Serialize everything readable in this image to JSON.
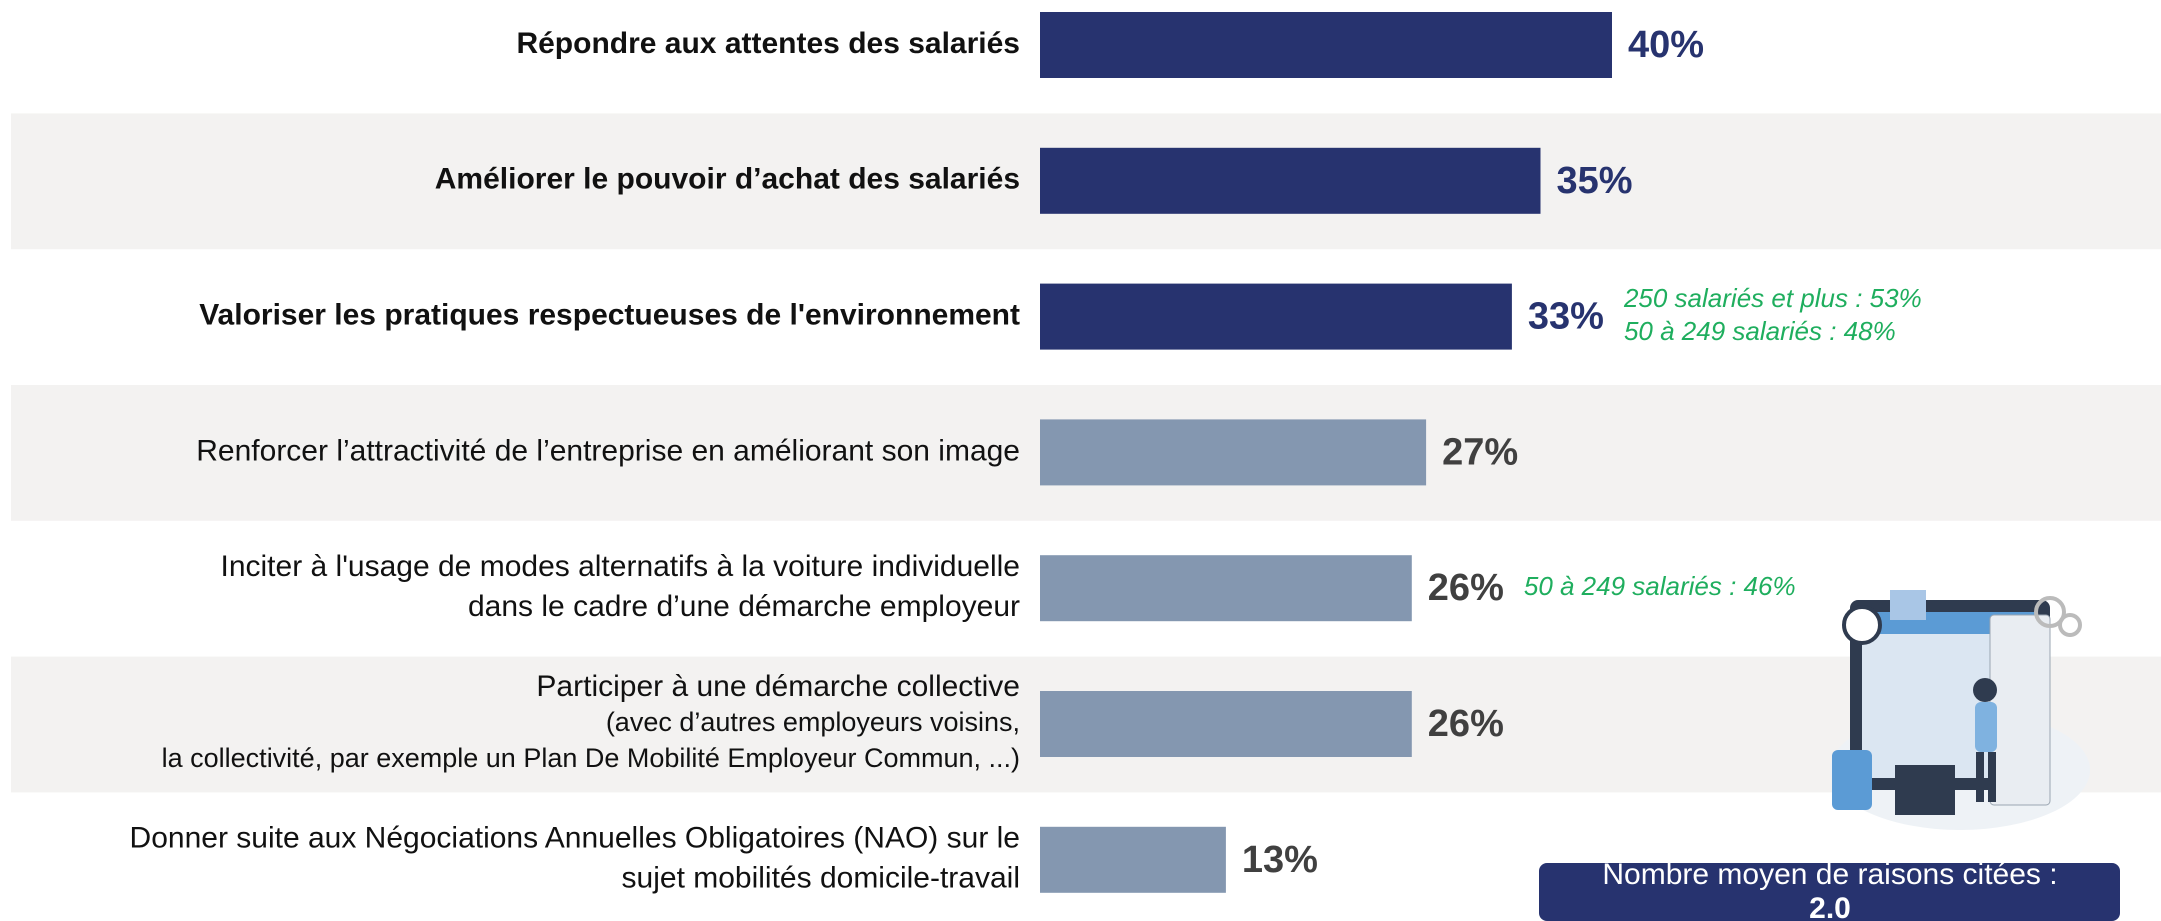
{
  "chart_data": {
    "type": "hbar",
    "categories": [
      [
        "Répondre aux attentes des salariés"
      ],
      [
        "Améliorer le pouvoir d’achat des salariés"
      ],
      [
        "Valoriser les pratiques respectueuses de l'environnement"
      ],
      [
        "Renforcer l’attractivité de l’entreprise en améliorant son image"
      ],
      [
        "Inciter à l'usage de modes alternatifs à la voiture individuelle",
        "dans le cadre d’une démarche employeur"
      ],
      [
        "Participer à une démarche collective",
        "(avec d’autres employeurs voisins,",
        "la collectivité, par exemple un Plan De Mobilité Employeur Commun, ...)"
      ],
      [
        "Donner suite aux Négociations Annuelles Obligatoires (NAO) sur le",
        "sujet mobilités domicile-travail"
      ]
    ],
    "values": [
      40,
      35,
      33,
      27,
      26,
      26,
      13
    ],
    "value_labels": [
      "40%",
      "35%",
      "33%",
      "27%",
      "26%",
      "26%",
      "13%"
    ],
    "colors": [
      "#27336f",
      "#27336f",
      "#27336f",
      "#8497b0",
      "#8497b0",
      "#8497b0",
      "#8497b0"
    ],
    "label_colors": [
      "#27336f",
      "#27336f",
      "#27336f",
      "#404040",
      "#404040",
      "#404040",
      "#404040"
    ],
    "bold": [
      true,
      true,
      true,
      false,
      false,
      false,
      false
    ],
    "notes": [
      null,
      null,
      [
        "250 salariés et plus : 53%",
        "50 à 249 salariés : 48%"
      ],
      null,
      [
        "50 à 249 salariés : 46%"
      ],
      null,
      null
    ],
    "note_color": "#1fae5e",
    "xlim": [
      0,
      100
    ],
    "summary": {
      "label": "Nombre moyen de raisons citées :",
      "value": 2.0,
      "value_label": "2.0"
    }
  }
}
